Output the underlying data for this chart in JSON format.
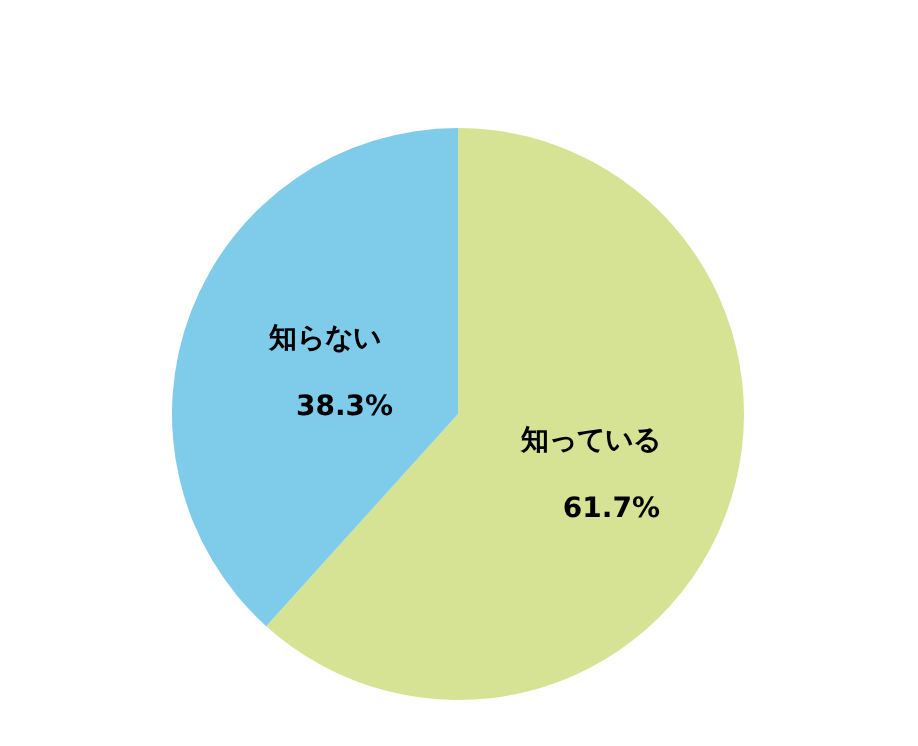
{
  "chart_data": {
    "type": "pie",
    "categories": [
      "知っている",
      "知らない"
    ],
    "values": [
      61.7,
      38.3
    ],
    "colors": [
      "#d7e394",
      "#7fcbea"
    ],
    "value_labels": [
      "61.7%",
      "38.3%"
    ]
  }
}
